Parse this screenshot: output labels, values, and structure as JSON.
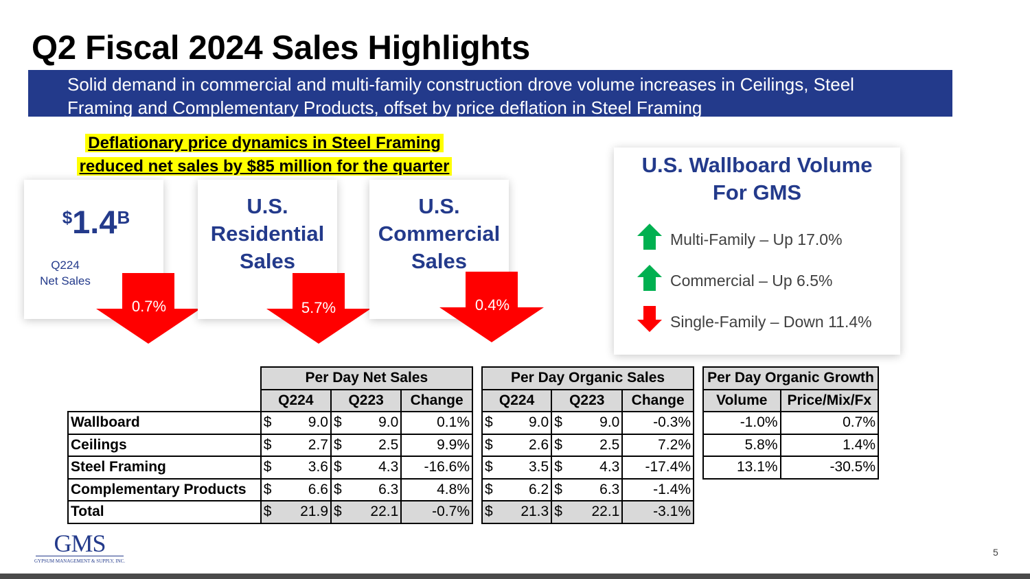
{
  "title": "Q2 Fiscal 2024 Sales Highlights",
  "banner": {
    "line1": "Solid demand in commercial and multi-family construction drove volume increases in Ceilings, Steel",
    "line2": "Framing and Complementary Products, offset by price deflation in Steel Framing"
  },
  "deflation": {
    "line1": "Deflationary price dynamics in Steel Framing",
    "line2": "reduced net sales by $85 million for the quarter"
  },
  "kpis": {
    "net_sales": {
      "currency": "$",
      "value": "1.4",
      "unit": "B",
      "label1": "Q224",
      "label2": "Net Sales",
      "change": "0.7%"
    },
    "residential": {
      "line1": "U.S.",
      "line2": "Residential",
      "line3": "Sales",
      "change": "5.7%"
    },
    "commercial": {
      "line1": "U.S.",
      "line2": "Commercial",
      "line3": "Sales",
      "change": "0.4%"
    },
    "colors": {
      "down": "#ff0000",
      "up": "#00b050",
      "accent": "#233a8b"
    }
  },
  "wallboard": {
    "title1": "U.S. Wallboard Volume",
    "title2": "For GMS",
    "items": [
      {
        "text": "Multi-Family – Up 17.0%",
        "direction": "up"
      },
      {
        "text": "Commercial – Up 6.5%",
        "direction": "up"
      },
      {
        "text": "Single-Family – Down 11.4%",
        "direction": "down"
      }
    ]
  },
  "tables": {
    "currency_symbol": "$",
    "net_sales": {
      "header": "Per Day Net Sales",
      "cols": [
        "Q224",
        "Q223",
        "Change"
      ],
      "rows": [
        [
          "9.0",
          "9.0",
          "0.1%"
        ],
        [
          "2.7",
          "2.5",
          "9.9%"
        ],
        [
          "3.6",
          "4.3",
          "-16.6%"
        ],
        [
          "6.6",
          "6.3",
          "4.8%"
        ],
        [
          "21.9",
          "22.1",
          "-0.7%"
        ]
      ]
    },
    "row_labels": [
      "Wallboard",
      "Ceilings",
      "Steel Framing",
      "Complementary Products",
      "Total"
    ],
    "organic_sales": {
      "header": "Per Day Organic Sales",
      "cols": [
        "Q224",
        "Q223",
        "Change"
      ],
      "rows": [
        [
          "9.0",
          "9.0",
          "-0.3%"
        ],
        [
          "2.6",
          "2.5",
          "7.2%"
        ],
        [
          "3.5",
          "4.3",
          "-17.4%"
        ],
        [
          "6.2",
          "6.3",
          "-1.4%"
        ],
        [
          "21.3",
          "22.1",
          "-3.1%"
        ]
      ]
    },
    "organic_growth": {
      "header": "Per Day Organic Growth",
      "cols": [
        "Volume",
        "Price/Mix/Fx"
      ],
      "rows": [
        [
          "-1.0%",
          "0.7%"
        ],
        [
          "5.8%",
          "1.4%"
        ],
        [
          "13.1%",
          "-30.5%"
        ]
      ]
    }
  },
  "logo": {
    "name": "GMS",
    "tagline": "GYPSUM MANAGEMENT & SUPPLY, INC."
  },
  "page_number": "5"
}
